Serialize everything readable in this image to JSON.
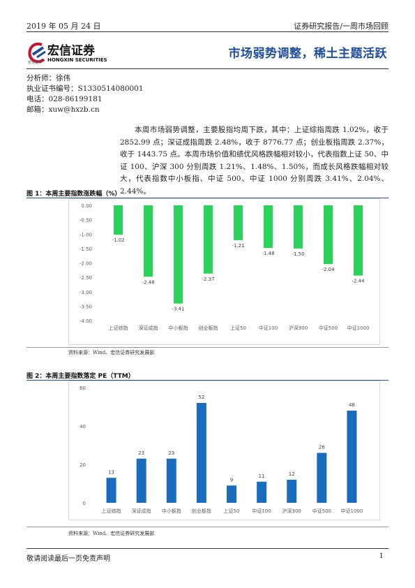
{
  "header": {
    "date": "2019 年 05 月 24 日",
    "report_type": "证券研究报告/一周市场回顾"
  },
  "logo": {
    "name_cn": "宏信证券",
    "name_en": "HONGXIN SECURITIES",
    "small_cn": "宏信证券"
  },
  "report_title": "市场弱势调整，稀土主题活跃",
  "analyst": {
    "name": "分析师：徐伟",
    "license": "执业证书编号：S1330514080001",
    "phone": "电话：028-86199181",
    "email": "邮箱：xuw@hxzb.cn"
  },
  "summary": "本周市场弱势调整，主要股指均周下跌，其中：上证综指周跌 1.02%，收于 2852.99 点；深证成指周跌 2.48%，收于 8776.77 点；创业板指周跌 2.37%，收于 1443.75 点。本周市场价值和绩优风格跌幅相对较小，代表指数上证 50、中证 100、沪深 300 分别周跌 1.21%、1.48%、1.50%，而成长风格跌幅相对较大，代表指数中小板指、中证 500、中证 1000 分别周跌 3.41%、2.04%、2.44%。",
  "figures": {
    "fig1_title": "图 1：本周主要指数涨跌幅（%）",
    "fig1_source": "资料来源：Wind、宏信证券研究发展部",
    "fig2_title": "图 2：本周主要指数落定 PE（TTM）",
    "fig2_source": "资料来源：Wind、宏信证券研究发展部"
  },
  "chart_data": [
    {
      "type": "bar",
      "title": "本周主要指数涨跌幅（%）",
      "categories": [
        "上证综指",
        "深证成指",
        "中小板指",
        "创业板指",
        "上证50",
        "中证100",
        "沪深300",
        "中证500",
        "中证1000"
      ],
      "values": [
        -1.02,
        -2.48,
        -3.41,
        -2.37,
        -1.21,
        -1.48,
        -1.5,
        -2.04,
        -2.44
      ],
      "data_labels": [
        "-1.02",
        "-2.48",
        "-3.41",
        "-2.37",
        "-1.21",
        "-1.48",
        "-1.50",
        "-2.04",
        "-2.44"
      ],
      "ylim": [
        -4.0,
        0.0
      ],
      "yticks": [
        "0.00",
        "-0.50",
        "-1.00",
        "-1.50",
        "-2.00",
        "-2.50",
        "-3.00",
        "-3.50",
        "-4.00"
      ],
      "color": "#2bd35a",
      "grid": false,
      "legend": "none"
    },
    {
      "type": "bar",
      "title": "本周主要指数落定 PE（TTM）",
      "categories": [
        "上证综指",
        "深证成指",
        "中小板指",
        "创业板指",
        "上证50",
        "中证100",
        "沪深300",
        "中证500",
        "中证1000"
      ],
      "values": [
        13,
        23,
        23,
        52,
        9,
        11,
        12,
        26,
        48
      ],
      "data_labels": [
        "13",
        "23",
        "23",
        "52",
        "9",
        "11",
        "12",
        "26",
        "48"
      ],
      "ylim": [
        0,
        60
      ],
      "yticks": [
        "0",
        "20",
        "40",
        "60"
      ],
      "color": "#1a6cbf",
      "grid": false,
      "legend": "none"
    }
  ],
  "footer": {
    "disclaimer": "敬请阅读最后一页免责声明",
    "page": "1"
  }
}
